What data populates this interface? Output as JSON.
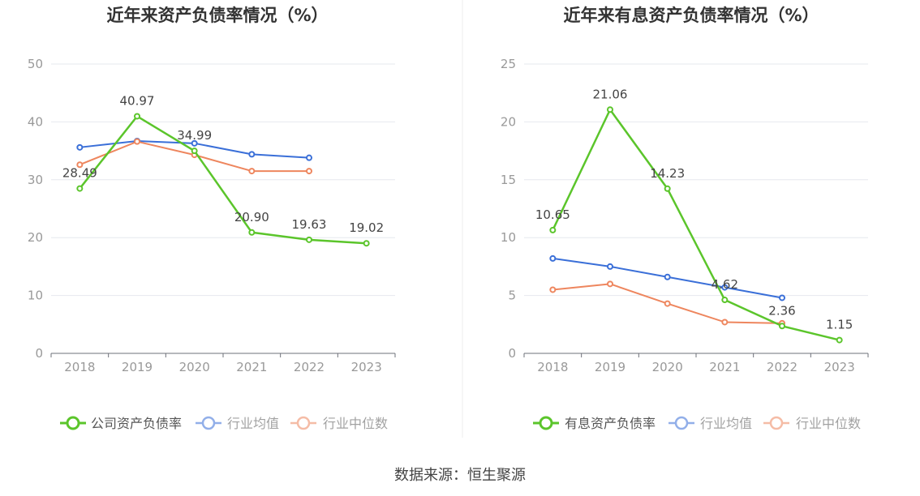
{
  "footer": {
    "source": "数据来源：恒生聚源"
  },
  "chart_data": [
    {
      "type": "line",
      "title": "近年来资产负债率情况（%）",
      "categories": [
        "2018",
        "2019",
        "2020",
        "2021",
        "2022",
        "2023"
      ],
      "ylim": [
        0,
        50
      ],
      "yticks": [
        0,
        10,
        20,
        30,
        40,
        50
      ],
      "grid": true,
      "legend_position": "bottom",
      "series": [
        {
          "name": "公司资产负债率",
          "color": "#5bc52b",
          "values": [
            28.49,
            40.97,
            34.99,
            20.9,
            19.63,
            19.02
          ],
          "data_labels": [
            "28.49",
            "40.97",
            "34.99",
            "20.90",
            "19.63",
            "19.02"
          ]
        },
        {
          "name": "行业均值",
          "color": "#3a6fd8",
          "values": [
            35.6,
            36.7,
            36.3,
            34.4,
            33.8,
            null
          ]
        },
        {
          "name": "行业中位数",
          "color": "#ee865e",
          "values": [
            32.6,
            36.6,
            34.3,
            31.5,
            31.5,
            null
          ]
        }
      ]
    },
    {
      "type": "line",
      "title": "近年来有息资产负债率情况（%）",
      "categories": [
        "2018",
        "2019",
        "2020",
        "2021",
        "2022",
        "2023"
      ],
      "ylim": [
        0,
        25
      ],
      "yticks": [
        0,
        5,
        10,
        15,
        20,
        25
      ],
      "grid": true,
      "legend_position": "bottom",
      "series": [
        {
          "name": "有息资产负债率",
          "color": "#5bc52b",
          "values": [
            10.65,
            21.06,
            14.23,
            4.62,
            2.36,
            1.15
          ],
          "data_labels": [
            "10.65",
            "21.06",
            "14.23",
            "4.62",
            "2.36",
            "1.15"
          ]
        },
        {
          "name": "行业均值",
          "color": "#3a6fd8",
          "values": [
            8.2,
            7.5,
            6.6,
            5.7,
            4.8,
            null
          ]
        },
        {
          "name": "行业中位数",
          "color": "#ee865e",
          "values": [
            5.5,
            6.0,
            4.3,
            2.7,
            2.6,
            null
          ]
        }
      ]
    }
  ]
}
